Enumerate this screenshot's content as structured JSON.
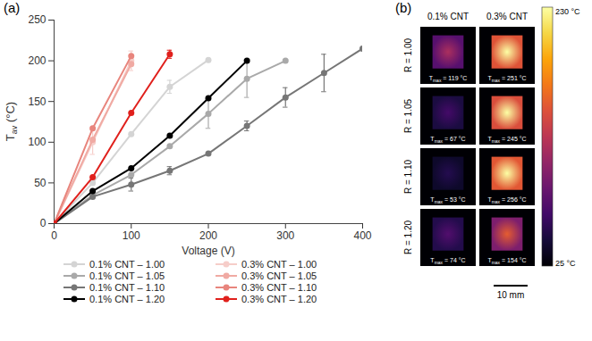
{
  "chart_data": {
    "type": "line",
    "panel_label": "(a)",
    "xlabel": "Voltage (V)",
    "ylabel": {
      "main": "T",
      "sub": "av",
      "rest": " (°C)"
    },
    "xlim": [
      0,
      400
    ],
    "xticks": [
      0,
      100,
      200,
      300,
      400
    ],
    "ylim": [
      0,
      250
    ],
    "yticks": [
      0,
      50,
      100,
      150,
      200,
      250
    ],
    "grid": false,
    "marker": "circle",
    "series": [
      {
        "name": "0.1% CNT – 1.00",
        "color": "#d4d4d4",
        "x": [
          0,
          50,
          100,
          150,
          200
        ],
        "values": [
          0,
          50,
          110,
          168,
          201
        ],
        "errors": [
          null,
          null,
          null,
          8,
          null
        ]
      },
      {
        "name": "0.3% CNT – 1.00",
        "color": "#f6cdc9",
        "x": [
          0,
          50,
          100
        ],
        "values": [
          0,
          100,
          200
        ],
        "errors": [
          null,
          15,
          12
        ]
      },
      {
        "name": "0.1% CNT – 1.05",
        "color": "#a9a9a9",
        "x": [
          0,
          50,
          100,
          150,
          200,
          250,
          300
        ],
        "values": [
          0,
          35,
          60,
          95,
          135,
          178,
          200
        ],
        "errors": [
          null,
          null,
          null,
          null,
          18,
          23,
          null
        ]
      },
      {
        "name": "0.3% CNT – 1.05",
        "color": "#f0aaa3",
        "x": [
          0,
          50,
          100
        ],
        "values": [
          0,
          103,
          196
        ],
        "errors": [
          null,
          null,
          null
        ]
      },
      {
        "name": "0.1% CNT – 1.10",
        "color": "#767676",
        "x": [
          0,
          50,
          100,
          150,
          200,
          250,
          300,
          350,
          400
        ],
        "values": [
          0,
          33,
          48,
          65,
          86,
          120,
          155,
          185,
          215
        ],
        "errors": [
          null,
          null,
          8,
          5,
          null,
          6,
          12,
          23,
          null
        ]
      },
      {
        "name": "0.3% CNT – 1.10",
        "color": "#e8857d",
        "x": [
          0,
          50,
          100
        ],
        "values": [
          0,
          117,
          206
        ],
        "errors": [
          null,
          null,
          null
        ]
      },
      {
        "name": "0.1% CNT – 1.20",
        "color": "#000000",
        "x": [
          0,
          50,
          100,
          150,
          200,
          250
        ],
        "values": [
          0,
          40,
          68,
          108,
          154,
          200
        ],
        "errors": [
          null,
          null,
          null,
          null,
          null,
          null
        ]
      },
      {
        "name": "0.3% CNT – 1.20",
        "color": "#e0201c",
        "x": [
          0,
          50,
          100,
          150
        ],
        "values": [
          0,
          57,
          136,
          208
        ],
        "errors": [
          null,
          null,
          null,
          5
        ]
      }
    ]
  },
  "thermal_images": {
    "panel_label": "(b)",
    "columns": [
      "0.1% CNT",
      "0.3% CNT"
    ],
    "rows": [
      {
        "label": "R = 1.00",
        "cells": [
          {
            "value": 119,
            "label": {
              "main": "T",
              "sub": "max",
              "rest": " = 119 °C"
            }
          },
          {
            "value": 251,
            "label": {
              "main": "T",
              "sub": "max",
              "rest": " = 251 °C"
            }
          }
        ]
      },
      {
        "label": "R = 1.05",
        "cells": [
          {
            "value": 67,
            "label": {
              "main": "T",
              "sub": "max",
              "rest": " = 67 °C"
            }
          },
          {
            "value": 245,
            "label": {
              "main": "T",
              "sub": "max",
              "rest": " = 245 °C"
            }
          }
        ]
      },
      {
        "label": "R = 1.10",
        "cells": [
          {
            "value": 53,
            "label": {
              "main": "T",
              "sub": "max",
              "rest": " = 53 °C"
            }
          },
          {
            "value": 256,
            "label": {
              "main": "T",
              "sub": "max",
              "rest": " = 256 °C"
            }
          }
        ]
      },
      {
        "label": "R = 1.20",
        "cells": [
          {
            "value": 74,
            "label": {
              "main": "T",
              "sub": "max",
              "rest": " = 74 °C"
            }
          },
          {
            "value": 154,
            "label": {
              "main": "T",
              "sub": "max",
              "rest": " = 154 °C"
            }
          }
        ]
      }
    ],
    "colorbar": {
      "range": [
        25,
        230
      ],
      "top_label": "230 °C",
      "bottom_label": "25 °C"
    },
    "scale_bar": "10 mm"
  }
}
